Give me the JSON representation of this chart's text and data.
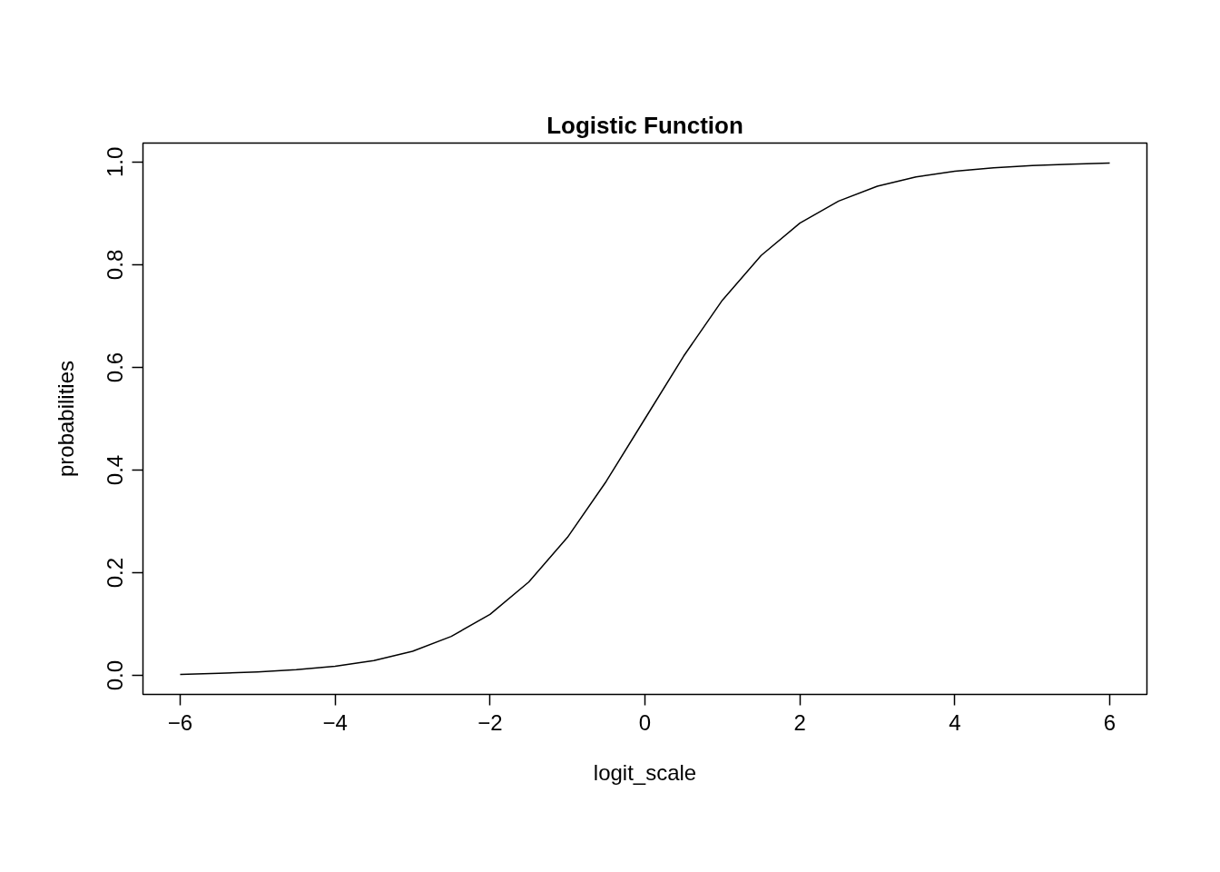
{
  "chart_data": {
    "type": "line",
    "title": "Logistic Function",
    "xlabel": "logit_scale",
    "ylabel": "probabilities",
    "x": [
      -6,
      -5.5,
      -5,
      -4.5,
      -4,
      -3.5,
      -3,
      -2.5,
      -2,
      -1.5,
      -1,
      -0.5,
      0,
      0.5,
      1,
      1.5,
      2,
      2.5,
      3,
      3.5,
      4,
      4.5,
      5,
      5.5,
      6
    ],
    "series": [
      {
        "color": "#000000",
        "values": [
          0.002,
          0.004,
          0.007,
          0.011,
          0.018,
          0.029,
          0.047,
          0.076,
          0.119,
          0.182,
          0.269,
          0.378,
          0.5,
          0.622,
          0.731,
          0.818,
          0.881,
          0.924,
          0.953,
          0.971,
          0.982,
          0.989,
          0.993,
          0.996,
          0.998
        ]
      }
    ],
    "xlim": [
      -6.48,
      6.48
    ],
    "ylim": [
      -0.037,
      1.037
    ],
    "xticks": [
      -6,
      -4,
      -2,
      0,
      2,
      4,
      6
    ],
    "yticks": [
      {
        "value": 0,
        "label": "0.0"
      },
      {
        "value": 0.2,
        "label": "0.2"
      },
      {
        "value": 0.4,
        "label": "0.4"
      },
      {
        "value": 0.6,
        "label": "0.6"
      },
      {
        "value": 0.8,
        "label": "0.8"
      },
      {
        "value": 1,
        "label": "1.0"
      }
    ],
    "grid": false,
    "marker": "none",
    "line_style": "solid"
  }
}
